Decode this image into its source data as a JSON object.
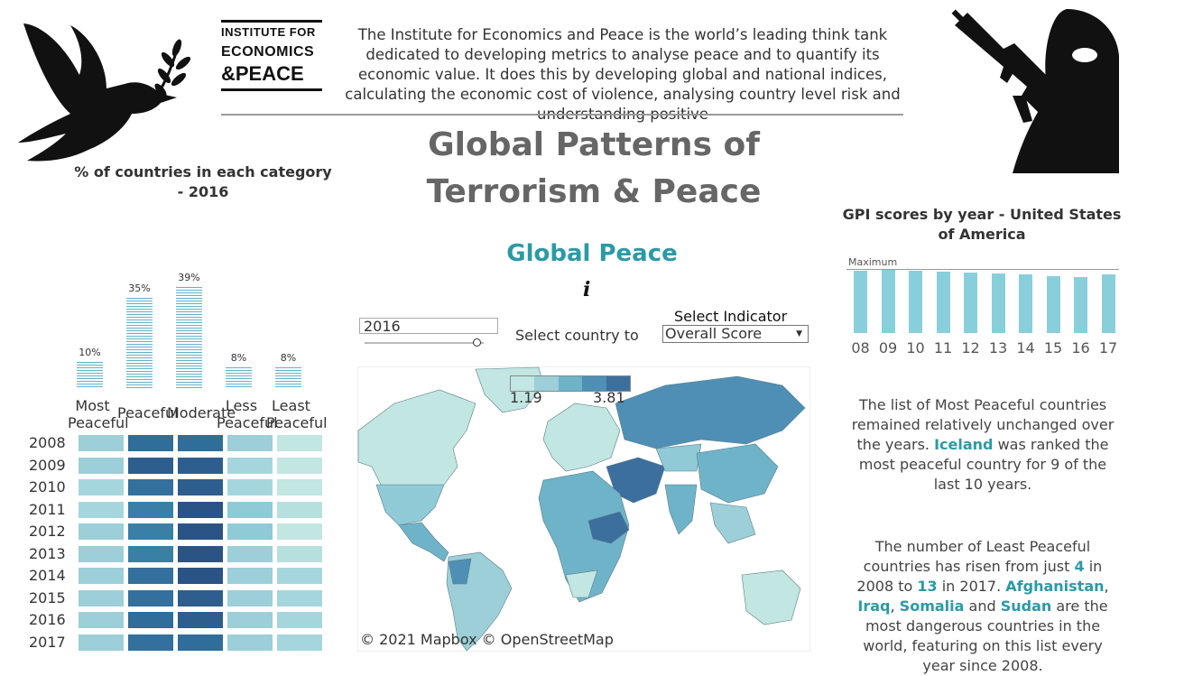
{
  "logo": {
    "line1": "INSTITUTE FOR",
    "line2": "ECONOMICS",
    "line3": "&PEACE"
  },
  "intro": "The Institute for Economics and Peace is the world’s leading think tank dedicated to developing metrics to analyse peace and to quantify its economic value. It does this by developing global and national indices, calculating the economic cost of violence, analysing country level risk and understanding positive",
  "title": "Global Patterns of Terrorism & Peace",
  "category_chart": {
    "title": "% of countries in each category - 2016",
    "labels": [
      "Most Peaceful",
      "Peaceful",
      "Moderate",
      "Less Peaceful",
      "Least Peaceful"
    ],
    "values": [
      10,
      35,
      39,
      8,
      8
    ],
    "value_labels": [
      "10%",
      "35%",
      "39%",
      "8%",
      "8%"
    ]
  },
  "heatmap": {
    "years": [
      "2008",
      "2009",
      "2010",
      "2011",
      "2012",
      "2013",
      "2014",
      "2015",
      "2016",
      "2017"
    ],
    "colors": [
      [
        "#9ccfd8",
        "#2f6d9a",
        "#2f6d9a",
        "#9ccfd8",
        "#c2e6e2"
      ],
      [
        "#9ccfd8",
        "#2e5e8e",
        "#2e5e8e",
        "#a6d6dd",
        "#c2e6e2"
      ],
      [
        "#a6d6dd",
        "#33709d",
        "#2e5e8e",
        "#a6d6dd",
        "#c2e6e2"
      ],
      [
        "#a6d6dd",
        "#3a7fa6",
        "#2a5486",
        "#8fcad6",
        "#b5e0dd"
      ],
      [
        "#9ccfd8",
        "#3a7fa6",
        "#2a5486",
        "#8fcad6",
        "#c2e6e2"
      ],
      [
        "#9ccfd8",
        "#3a7fa6",
        "#2a5486",
        "#9ccfd8",
        "#b5e0dd"
      ],
      [
        "#9ccfd8",
        "#33709d",
        "#2a5486",
        "#9ccfd8",
        "#a6d6dd"
      ],
      [
        "#9ccfd8",
        "#33709d",
        "#2e5e8e",
        "#9ccfd8",
        "#a6d6dd"
      ],
      [
        "#9ccfd8",
        "#2f6d9a",
        "#2e5e8e",
        "#9ccfd8",
        "#a6d6dd"
      ],
      [
        "#9ccfd8",
        "#33709d",
        "#2f6d9a",
        "#9ccfd8",
        "#a6d6dd"
      ]
    ]
  },
  "map_panel": {
    "heading": "Global Peace",
    "info_icon": "i",
    "year_value": "2016",
    "slider_fraction": 0.94,
    "country_label": "Select country to",
    "indicator_label": "Select Indicator",
    "indicator_value": "Overall Score",
    "legend_min": "1.19",
    "legend_max": "3.81",
    "legend_colors": [
      "#c2e6e2",
      "#9ccfd8",
      "#6fb3c9",
      "#4f8fb5",
      "#3c6f9e"
    ],
    "credit": "© 2021 Mapbox © OpenStreetMap"
  },
  "gpi_chart": {
    "title": "GPI scores by year - United States of America",
    "ref_label": "Maximum",
    "years": [
      "08",
      "09",
      "10",
      "11",
      "12",
      "13",
      "14",
      "15",
      "16",
      "17"
    ],
    "values": [
      0.98,
      1.0,
      0.98,
      0.97,
      0.96,
      0.94,
      0.93,
      0.9,
      0.89,
      0.93
    ]
  },
  "side_text": {
    "p1_a": "The list of Most Peaceful countries remained relatively unchanged over the years. ",
    "p1_hl": "Iceland",
    "p1_b": " was ranked the most peaceful country for 9 of the last 10 years.",
    "p2_a": "The number of Least Peaceful countries has risen from just ",
    "p2_n1": "4",
    "p2_b": " in 2008 to ",
    "p2_n2": "13",
    "p2_c": " in 2017. ",
    "p2_c1": "Afghanistan",
    "p2_sep1": ", ",
    "p2_c2": "Iraq",
    "p2_sep2": ", ",
    "p2_c3": "Somalia",
    "p2_and": " and ",
    "p2_c4": "Sudan",
    "p2_d": " are the most dangerous countries in the world, featuring on this list every year since 2008."
  },
  "icons": {
    "dove": "dove-olive-branch-icon",
    "soldier": "gunman-silhouette-icon"
  }
}
